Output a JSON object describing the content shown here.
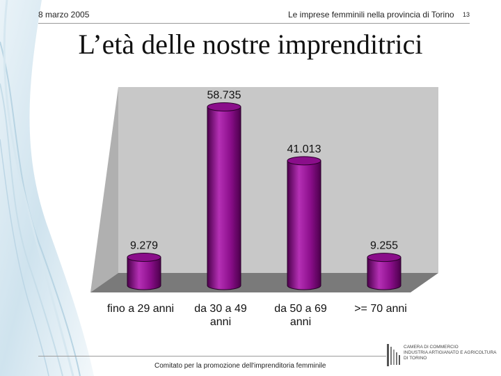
{
  "header": {
    "date": "8 marzo 2005",
    "subject": "Le imprese femminili nella provincia di Torino",
    "page_number": "13"
  },
  "title": "L’età delle nostre imprenditrici",
  "chart_data": {
    "type": "bar",
    "style": "3d-cylinder",
    "categories": [
      "fino a 29 anni",
      "da 30 a 49 anni",
      "da 50 a 69 anni",
      ">= 70 anni"
    ],
    "category_lines": [
      [
        "fino a 29 anni"
      ],
      [
        "da 30 a 49",
        "anni"
      ],
      [
        "da 50 a 69",
        "anni"
      ],
      [
        ">= 70 anni"
      ]
    ],
    "values": [
      9.279,
      58.735,
      41.013,
      9.255
    ],
    "value_labels": [
      "9.279",
      "58.735",
      "41.013",
      "9.255"
    ],
    "ylim": [
      0,
      60
    ],
    "grid": false,
    "colors": {
      "bar": "#8a0e8a",
      "bar_dark": "#4c004c",
      "bar_light": "#b530b5",
      "back_wall": "#c8c8c8",
      "side_wall": "#b0b0b0",
      "floor": "#7a7a7a"
    }
  },
  "footer": {
    "text": "Comitato per la promozione dell'imprenditoria femminile",
    "logo_lines": [
      "CAMERA DI COMMERCIO",
      "INDUSTRIA ARTIGIANATO E AGRICOLTURA",
      "DI TORINO"
    ]
  }
}
